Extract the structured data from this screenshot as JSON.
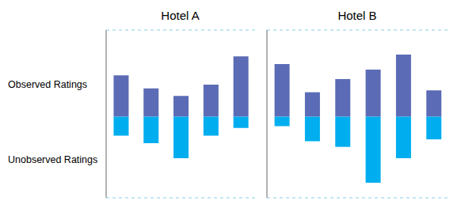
{
  "chart_data": [
    {
      "type": "bar",
      "title": "Hotel A",
      "categories": [
        null,
        null,
        null,
        null,
        null
      ],
      "series": [
        {
          "name": "Observed Ratings",
          "color": "#5B6BB5",
          "values": [
            2.2,
            1.5,
            1.1,
            1.7,
            3.2
          ]
        },
        {
          "name": "Unobserved Ratings",
          "color": "#00AEEF",
          "values": [
            -1.0,
            -1.4,
            -2.2,
            -1.0,
            -0.6
          ]
        }
      ],
      "stacked": true,
      "ylim": [
        -4.3,
        4.6
      ],
      "yticks": [
        0
      ],
      "grid": true,
      "tick_labels": false
    },
    {
      "type": "bar",
      "title": "Hotel B",
      "categories": [
        null,
        null,
        null,
        null,
        null,
        null
      ],
      "series": [
        {
          "name": "Observed Ratings",
          "color": "#5B6BB5",
          "values": [
            2.8,
            1.3,
            2.0,
            2.5,
            3.3,
            1.4
          ]
        },
        {
          "name": "Unobserved Ratings",
          "color": "#00AEEF",
          "values": [
            -0.5,
            -1.3,
            -1.6,
            -3.5,
            -2.2,
            -1.2
          ]
        }
      ],
      "stacked": true,
      "ylim": [
        -4.3,
        4.6
      ],
      "yticks": [
        0
      ],
      "grid": true,
      "tick_labels": false
    }
  ]
}
